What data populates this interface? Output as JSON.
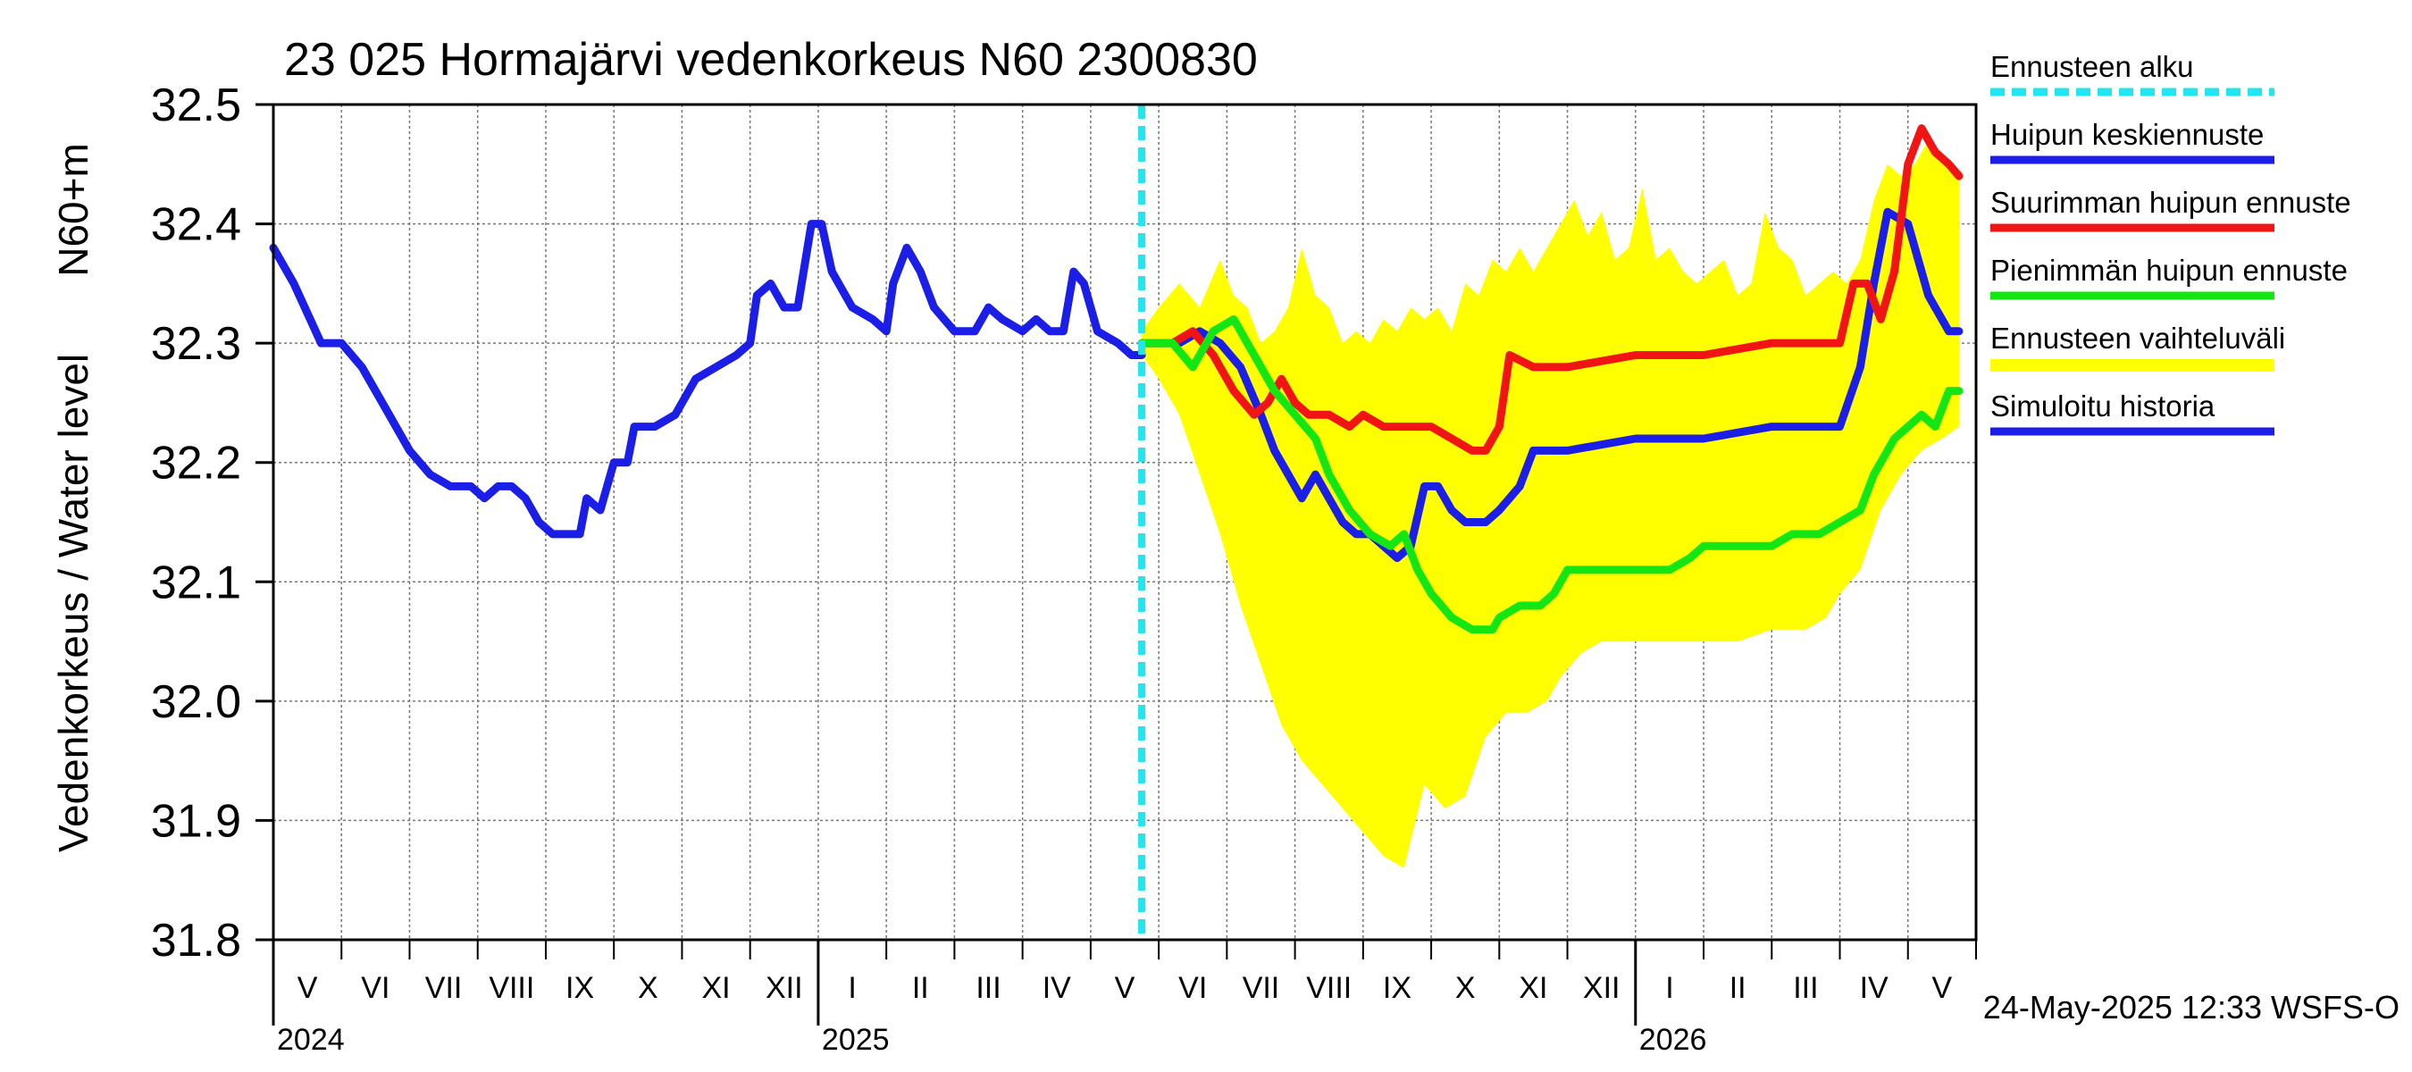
{
  "chart_data": {
    "type": "line",
    "title": "23 025 Hormajärvi vedenkorkeus N60 2300830",
    "ylabel_left": "Vedenkorkeus / Water level",
    "ylabel_right": "N60+m",
    "ylim": [
      31.8,
      32.5
    ],
    "yticks": [
      "31.8",
      "31.9",
      "32.0",
      "32.1",
      "32.2",
      "32.3",
      "32.4",
      "32.5"
    ],
    "x_start_month": "2024-05",
    "x_months": 25,
    "month_labels": [
      "V",
      "VI",
      "VII",
      "VIII",
      "IX",
      "X",
      "XI",
      "XII",
      "I",
      "II",
      "III",
      "IV",
      "V",
      "VI",
      "VII",
      "VIII",
      "IX",
      "X",
      "XI",
      "XII",
      "I",
      "II",
      "III",
      "IV",
      "V"
    ],
    "year_labels": [
      {
        "label": "2024",
        "month": 0
      },
      {
        "label": "2025",
        "month": 8
      },
      {
        "label": "2026",
        "month": 20
      }
    ],
    "forecast_start_month": 12.75,
    "footer": "24-May-2025 12:33 WSFS-O",
    "legend": [
      {
        "key": "forecast_start",
        "label": "Ennusteen alku",
        "color": "#22e5ef",
        "dashed": true
      },
      {
        "key": "mean_peak",
        "label": "Huipun keskiennuste",
        "color": "#1a1ee6"
      },
      {
        "key": "max_peak",
        "label": "Suurimman huipun ennuste",
        "color": "#f01414"
      },
      {
        "key": "min_peak",
        "label": "Pienimmän huipun ennuste",
        "color": "#14e614"
      },
      {
        "key": "range",
        "label": "Ennusteen vaihteluväli",
        "color": "#ffff00"
      },
      {
        "key": "history",
        "label": "Simuloitu historia",
        "color": "#1a1ee6"
      }
    ],
    "series": [
      {
        "name": "Simuloitu historia",
        "key": "history",
        "color": "#1a1ee6",
        "points": [
          [
            0,
            32.38
          ],
          [
            0.3,
            32.35
          ],
          [
            0.7,
            32.3
          ],
          [
            1.0,
            32.3
          ],
          [
            1.3,
            32.28
          ],
          [
            1.6,
            32.25
          ],
          [
            2.0,
            32.21
          ],
          [
            2.3,
            32.19
          ],
          [
            2.6,
            32.18
          ],
          [
            2.9,
            32.18
          ],
          [
            3.1,
            32.17
          ],
          [
            3.3,
            32.18
          ],
          [
            3.5,
            32.18
          ],
          [
            3.7,
            32.17
          ],
          [
            3.9,
            32.15
          ],
          [
            4.1,
            32.14
          ],
          [
            4.3,
            32.14
          ],
          [
            4.5,
            32.14
          ],
          [
            4.6,
            32.17
          ],
          [
            4.8,
            32.16
          ],
          [
            5.0,
            32.2
          ],
          [
            5.2,
            32.2
          ],
          [
            5.3,
            32.23
          ],
          [
            5.6,
            32.23
          ],
          [
            5.9,
            32.24
          ],
          [
            6.2,
            32.27
          ],
          [
            6.5,
            32.28
          ],
          [
            6.8,
            32.29
          ],
          [
            7.0,
            32.3
          ],
          [
            7.1,
            32.34
          ],
          [
            7.3,
            32.35
          ],
          [
            7.5,
            32.33
          ],
          [
            7.7,
            32.33
          ],
          [
            7.9,
            32.4
          ],
          [
            8.05,
            32.4
          ],
          [
            8.2,
            32.36
          ],
          [
            8.5,
            32.33
          ],
          [
            8.8,
            32.32
          ],
          [
            9.0,
            32.31
          ],
          [
            9.1,
            32.35
          ],
          [
            9.3,
            32.38
          ],
          [
            9.5,
            32.36
          ],
          [
            9.7,
            32.33
          ],
          [
            10.0,
            32.31
          ],
          [
            10.3,
            32.31
          ],
          [
            10.5,
            32.33
          ],
          [
            10.7,
            32.32
          ],
          [
            11.0,
            32.31
          ],
          [
            11.2,
            32.32
          ],
          [
            11.4,
            32.31
          ],
          [
            11.6,
            32.31
          ],
          [
            11.75,
            32.36
          ],
          [
            11.9,
            32.35
          ],
          [
            12.1,
            32.31
          ],
          [
            12.4,
            32.3
          ],
          [
            12.6,
            32.29
          ],
          [
            12.75,
            32.29
          ]
        ]
      },
      {
        "name": "Huipun keskiennuste",
        "key": "mean_peak",
        "color": "#1a1ee6",
        "points": [
          [
            12.75,
            32.3
          ],
          [
            13.0,
            32.3
          ],
          [
            13.3,
            32.3
          ],
          [
            13.6,
            32.31
          ],
          [
            13.9,
            32.3
          ],
          [
            14.2,
            32.28
          ],
          [
            14.5,
            32.24
          ],
          [
            14.7,
            32.21
          ],
          [
            14.9,
            32.19
          ],
          [
            15.1,
            32.17
          ],
          [
            15.3,
            32.19
          ],
          [
            15.5,
            32.17
          ],
          [
            15.7,
            32.15
          ],
          [
            15.9,
            32.14
          ],
          [
            16.1,
            32.14
          ],
          [
            16.3,
            32.13
          ],
          [
            16.5,
            32.12
          ],
          [
            16.7,
            32.13
          ],
          [
            16.9,
            32.18
          ],
          [
            17.1,
            32.18
          ],
          [
            17.3,
            32.16
          ],
          [
            17.5,
            32.15
          ],
          [
            17.8,
            32.15
          ],
          [
            18.0,
            32.16
          ],
          [
            18.3,
            32.18
          ],
          [
            18.5,
            32.21
          ],
          [
            19.0,
            32.21
          ],
          [
            20.0,
            32.22
          ],
          [
            21.0,
            32.22
          ],
          [
            22.0,
            32.23
          ],
          [
            23.0,
            32.23
          ],
          [
            23.3,
            32.28
          ],
          [
            23.5,
            32.35
          ],
          [
            23.7,
            32.41
          ],
          [
            24.0,
            32.4
          ],
          [
            24.3,
            32.34
          ],
          [
            24.6,
            32.31
          ],
          [
            24.75,
            32.31
          ]
        ]
      },
      {
        "name": "Suurimman huipun ennuste",
        "key": "max_peak",
        "color": "#f01414",
        "points": [
          [
            12.75,
            32.3
          ],
          [
            13.2,
            32.3
          ],
          [
            13.5,
            32.31
          ],
          [
            13.8,
            32.29
          ],
          [
            14.1,
            32.26
          ],
          [
            14.4,
            32.24
          ],
          [
            14.6,
            32.25
          ],
          [
            14.8,
            32.27
          ],
          [
            15.0,
            32.25
          ],
          [
            15.2,
            32.24
          ],
          [
            15.5,
            32.24
          ],
          [
            15.8,
            32.23
          ],
          [
            16.0,
            32.24
          ],
          [
            16.3,
            32.23
          ],
          [
            16.6,
            32.23
          ],
          [
            17.0,
            32.23
          ],
          [
            17.3,
            32.22
          ],
          [
            17.6,
            32.21
          ],
          [
            17.8,
            32.21
          ],
          [
            18.0,
            32.23
          ],
          [
            18.15,
            32.29
          ],
          [
            18.5,
            32.28
          ],
          [
            19.0,
            32.28
          ],
          [
            20.0,
            32.29
          ],
          [
            21.0,
            32.29
          ],
          [
            22.0,
            32.3
          ],
          [
            23.0,
            32.3
          ],
          [
            23.2,
            32.35
          ],
          [
            23.4,
            32.35
          ],
          [
            23.6,
            32.32
          ],
          [
            23.8,
            32.36
          ],
          [
            24.0,
            32.45
          ],
          [
            24.2,
            32.48
          ],
          [
            24.4,
            32.46
          ],
          [
            24.6,
            32.45
          ],
          [
            24.75,
            32.44
          ]
        ]
      },
      {
        "name": "Pienimmän huipun ennuste",
        "key": "min_peak",
        "color": "#14e614",
        "points": [
          [
            12.75,
            32.3
          ],
          [
            13.2,
            32.3
          ],
          [
            13.5,
            32.28
          ],
          [
            13.8,
            32.31
          ],
          [
            14.1,
            32.32
          ],
          [
            14.4,
            32.29
          ],
          [
            14.7,
            32.26
          ],
          [
            15.0,
            32.24
          ],
          [
            15.3,
            32.22
          ],
          [
            15.5,
            32.19
          ],
          [
            15.8,
            32.16
          ],
          [
            16.1,
            32.14
          ],
          [
            16.4,
            32.13
          ],
          [
            16.6,
            32.14
          ],
          [
            16.8,
            32.11
          ],
          [
            17.0,
            32.09
          ],
          [
            17.3,
            32.07
          ],
          [
            17.6,
            32.06
          ],
          [
            17.9,
            32.06
          ],
          [
            18.0,
            32.07
          ],
          [
            18.3,
            32.08
          ],
          [
            18.6,
            32.08
          ],
          [
            18.8,
            32.09
          ],
          [
            19.0,
            32.11
          ],
          [
            19.5,
            32.11
          ],
          [
            20.0,
            32.11
          ],
          [
            20.5,
            32.11
          ],
          [
            20.8,
            32.12
          ],
          [
            21.0,
            32.13
          ],
          [
            21.5,
            32.13
          ],
          [
            22.0,
            32.13
          ],
          [
            22.3,
            32.14
          ],
          [
            22.7,
            32.14
          ],
          [
            23.0,
            32.15
          ],
          [
            23.3,
            32.16
          ],
          [
            23.5,
            32.19
          ],
          [
            23.8,
            32.22
          ],
          [
            24.0,
            32.23
          ],
          [
            24.2,
            32.24
          ],
          [
            24.4,
            32.23
          ],
          [
            24.6,
            32.26
          ],
          [
            24.75,
            32.26
          ]
        ]
      }
    ],
    "range_band": {
      "upper": [
        [
          12.75,
          32.31
        ],
        [
          13.0,
          32.33
        ],
        [
          13.3,
          32.35
        ],
        [
          13.6,
          32.33
        ],
        [
          13.9,
          32.37
        ],
        [
          14.1,
          32.34
        ],
        [
          14.3,
          32.33
        ],
        [
          14.5,
          32.3
        ],
        [
          14.7,
          32.31
        ],
        [
          14.9,
          32.33
        ],
        [
          15.1,
          32.38
        ],
        [
          15.3,
          32.34
        ],
        [
          15.5,
          32.33
        ],
        [
          15.7,
          32.3
        ],
        [
          15.9,
          32.31
        ],
        [
          16.1,
          32.3
        ],
        [
          16.3,
          32.32
        ],
        [
          16.5,
          32.31
        ],
        [
          16.7,
          32.33
        ],
        [
          16.9,
          32.32
        ],
        [
          17.1,
          32.33
        ],
        [
          17.3,
          32.31
        ],
        [
          17.5,
          32.35
        ],
        [
          17.7,
          32.34
        ],
        [
          17.9,
          32.37
        ],
        [
          18.1,
          32.36
        ],
        [
          18.3,
          32.38
        ],
        [
          18.5,
          32.36
        ],
        [
          18.7,
          32.38
        ],
        [
          18.9,
          32.4
        ],
        [
          19.1,
          32.42
        ],
        [
          19.3,
          32.39
        ],
        [
          19.5,
          32.41
        ],
        [
          19.7,
          32.37
        ],
        [
          19.9,
          32.38
        ],
        [
          20.1,
          32.43
        ],
        [
          20.3,
          32.37
        ],
        [
          20.5,
          32.38
        ],
        [
          20.7,
          32.36
        ],
        [
          20.9,
          32.35
        ],
        [
          21.1,
          32.36
        ],
        [
          21.3,
          32.37
        ],
        [
          21.5,
          32.34
        ],
        [
          21.7,
          32.35
        ],
        [
          21.9,
          32.41
        ],
        [
          22.1,
          32.38
        ],
        [
          22.3,
          32.37
        ],
        [
          22.5,
          32.34
        ],
        [
          22.7,
          32.35
        ],
        [
          22.9,
          32.36
        ],
        [
          23.1,
          32.35
        ],
        [
          23.3,
          32.37
        ],
        [
          23.5,
          32.42
        ],
        [
          23.7,
          32.45
        ],
        [
          23.9,
          32.44
        ],
        [
          24.1,
          32.45
        ],
        [
          24.3,
          32.47
        ],
        [
          24.5,
          32.46
        ],
        [
          24.75,
          32.44
        ]
      ],
      "lower": [
        [
          12.75,
          32.29
        ],
        [
          13.0,
          32.27
        ],
        [
          13.3,
          32.24
        ],
        [
          13.6,
          32.19
        ],
        [
          13.9,
          32.14
        ],
        [
          14.2,
          32.08
        ],
        [
          14.5,
          32.03
        ],
        [
          14.8,
          31.98
        ],
        [
          15.1,
          31.95
        ],
        [
          15.4,
          31.93
        ],
        [
          15.7,
          31.91
        ],
        [
          16.0,
          31.89
        ],
        [
          16.3,
          31.87
        ],
        [
          16.6,
          31.86
        ],
        [
          16.9,
          31.93
        ],
        [
          17.2,
          31.91
        ],
        [
          17.5,
          31.92
        ],
        [
          17.8,
          31.97
        ],
        [
          18.1,
          31.99
        ],
        [
          18.4,
          31.99
        ],
        [
          18.7,
          32.0
        ],
        [
          18.9,
          32.02
        ],
        [
          19.2,
          32.04
        ],
        [
          19.5,
          32.05
        ],
        [
          19.8,
          32.05
        ],
        [
          20.2,
          32.05
        ],
        [
          20.6,
          32.05
        ],
        [
          21.0,
          32.05
        ],
        [
          21.5,
          32.05
        ],
        [
          22.0,
          32.06
        ],
        [
          22.5,
          32.06
        ],
        [
          22.8,
          32.07
        ],
        [
          23.0,
          32.09
        ],
        [
          23.3,
          32.11
        ],
        [
          23.6,
          32.16
        ],
        [
          23.9,
          32.19
        ],
        [
          24.2,
          32.21
        ],
        [
          24.5,
          32.22
        ],
        [
          24.75,
          32.23
        ]
      ]
    }
  }
}
